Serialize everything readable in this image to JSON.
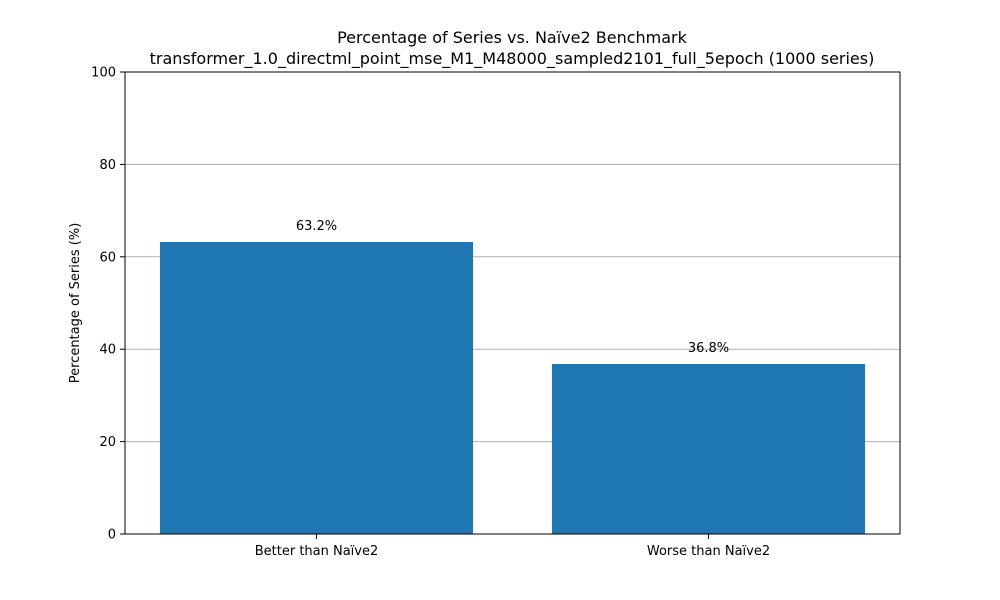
{
  "chart_data": {
    "type": "bar",
    "title": "Percentage of Series vs. Naïve2 Benchmark",
    "subtitle": "transformer_1.0_directml_point_mse_M1_M48000_sampled2101_full_5epoch (1000 series)",
    "categories": [
      "Better than Naïve2",
      "Worse than Naïve2"
    ],
    "values": [
      63.2,
      36.8
    ],
    "data_labels": [
      "63.2%",
      "36.8%"
    ],
    "xlabel": "",
    "ylabel": "Percentage of Series (%)",
    "ylim": [
      0,
      100
    ],
    "yticks": [
      0,
      20,
      40,
      60,
      80,
      100
    ],
    "ytick_labels": [
      "0",
      "20",
      "40",
      "60",
      "80",
      "100"
    ],
    "grid": "y-axis",
    "bar_color": "#1f77b4",
    "grid_color": "#b0b0b0",
    "axis_color": "#000000"
  }
}
